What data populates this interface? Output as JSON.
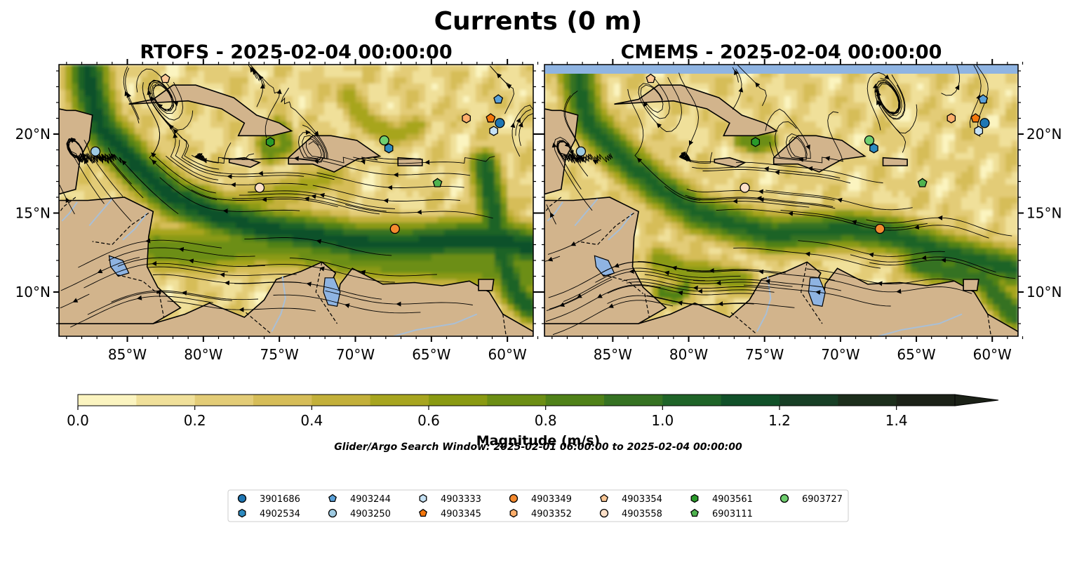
{
  "figure": {
    "suptitle": "Currents (0 m)",
    "search_window": "Glider/Argo Search Window: 2025-02-01 06:00:00 to 2025-02-04 00:00:00"
  },
  "maps": [
    {
      "title": "RTOFS - 2025-02-04 00:00:00",
      "regime": "rtofs",
      "x_ticks": [
        "85°W",
        "80°W",
        "75°W",
        "70°W",
        "65°W",
        "60°W"
      ],
      "y_ticks": [
        "20°N",
        "15°N",
        "10°N"
      ],
      "y_tick_side": "left"
    },
    {
      "title": "CMEMS - 2025-02-04 00:00:00",
      "regime": "cmems",
      "x_ticks": [
        "85°W",
        "80°W",
        "75°W",
        "70°W",
        "65°W",
        "60°W"
      ],
      "y_ticks": [
        "20°N",
        "15°N",
        "10°N"
      ],
      "y_tick_side": "right"
    }
  ],
  "map_extent": {
    "lon": [
      -89.5,
      -58.3
    ],
    "lat": [
      7.2,
      24.4
    ]
  },
  "lon_tick_values": [
    -85,
    -80,
    -75,
    -70,
    -65,
    -60
  ],
  "lat_tick_values": [
    20,
    15,
    10
  ],
  "colors": {
    "land": "#d2b48c",
    "lake": "#8fb4e2",
    "river": "#a9bfd6",
    "colormap": [
      "#fbf4c0",
      "#f0e09a",
      "#e3cc77",
      "#d6bd58",
      "#c3b03a",
      "#a7a51f",
      "#8a9a12",
      "#6c8e14",
      "#4f8118",
      "#357222",
      "#1f6428",
      "#115129",
      "#173f25",
      "#1c2e1b",
      "#1b2117"
    ]
  },
  "colorbar": {
    "label": "Magnitude (m/s)",
    "min": 0.0,
    "max": 1.5,
    "step": 0.1,
    "extend": "max",
    "ticks": [
      "0.0",
      "0.2",
      "0.4",
      "0.6",
      "0.8",
      "1.0",
      "1.2",
      "1.4"
    ],
    "tick_values": [
      0.0,
      0.2,
      0.4,
      0.6,
      0.8,
      1.0,
      1.2,
      1.4
    ]
  },
  "floats": [
    {
      "id": "3901686",
      "marker": "circle",
      "color": "#1f77b4",
      "lon": -60.5,
      "lat": 20.7
    },
    {
      "id": "4902534",
      "marker": "hexagon",
      "color": "#2e8bc0",
      "lon": -67.8,
      "lat": 19.1
    },
    {
      "id": "4903244",
      "marker": "pentagon",
      "color": "#5aa0d8",
      "lon": -60.6,
      "lat": 22.2
    },
    {
      "id": "4903250",
      "marker": "circle",
      "color": "#9ecae1",
      "lon": -87.1,
      "lat": 18.9
    },
    {
      "id": "4903333",
      "marker": "hexagon",
      "color": "#c6e2f5",
      "lon": -60.9,
      "lat": 20.2
    },
    {
      "id": "4903345",
      "marker": "pentagon",
      "color": "#f4770c",
      "lon": -61.1,
      "lat": 21.0
    },
    {
      "id": "4903349",
      "marker": "circle",
      "color": "#f58a2e",
      "lon": -67.4,
      "lat": 14.0
    },
    {
      "id": "4903352",
      "marker": "hexagon",
      "color": "#fdae6b",
      "lon": -62.7,
      "lat": 21.0
    },
    {
      "id": "4903354",
      "marker": "pentagon",
      "color": "#fdc896",
      "lon": -82.5,
      "lat": 23.5
    },
    {
      "id": "4903558",
      "marker": "circle",
      "color": "#fde0c8",
      "lon": -76.3,
      "lat": 16.6
    },
    {
      "id": "4903561",
      "marker": "hexagon",
      "color": "#2a9a2a",
      "lon": -75.6,
      "lat": 19.5
    },
    {
      "id": "6903111",
      "marker": "pentagon",
      "color": "#4fb34f",
      "lon": -64.6,
      "lat": 16.9
    },
    {
      "id": "6903727",
      "marker": "circle",
      "color": "#6fcf6f",
      "lon": -68.1,
      "lat": 19.6
    }
  ],
  "legend": {
    "rows": [
      [
        "3901686",
        "4903244",
        "4903333",
        "4903349",
        "4903354",
        "4903561",
        "6903727"
      ],
      [
        "4902534",
        "4903250",
        "4903345",
        "4903352",
        "4903558",
        "6903111"
      ]
    ]
  }
}
